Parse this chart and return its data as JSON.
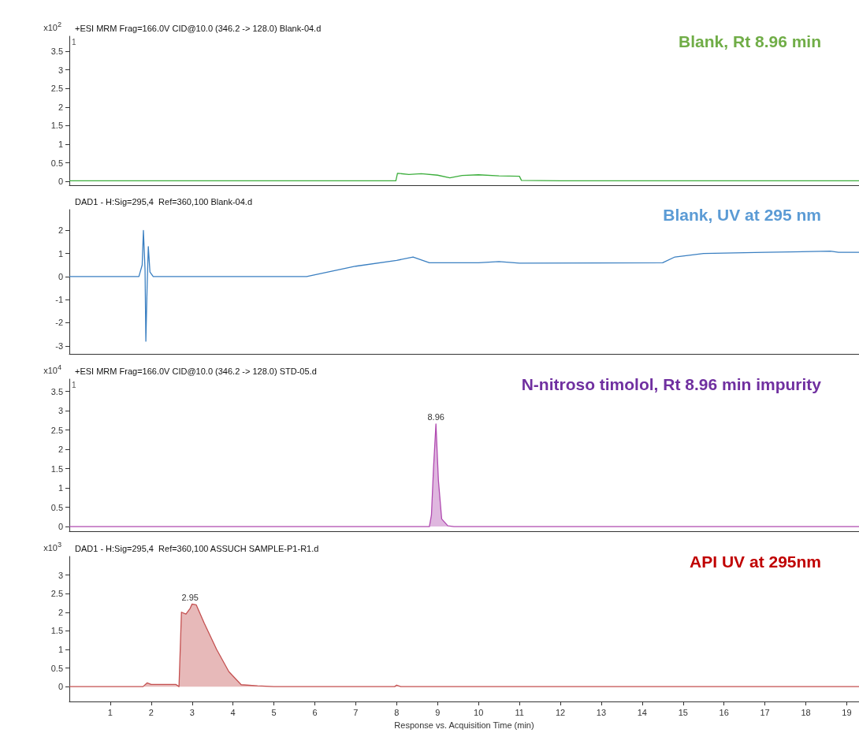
{
  "chart_data": [
    {
      "type": "line",
      "title": "+ESI MRM Frag=166.0V CID@10.0 (346.2 -> 128.0) Blank-04.d",
      "ylabel": "x10$^{2}$",
      "annotations": [
        "Blank, Rt 8.96 min",
        "1"
      ],
      "tick_labels": "y",
      "x": [
        0,
        7.98,
        8.02,
        8.3,
        8.6,
        9.0,
        9.3,
        9.6,
        10.0,
        10.5,
        11.0,
        11.05,
        12.0,
        19.3
      ],
      "series": [
        {
          "color": "#3cae3c",
          "values": [
            0.02,
            0.02,
            0.22,
            0.19,
            0.21,
            0.17,
            0.1,
            0.16,
            0.18,
            0.15,
            0.14,
            0.03,
            0.02,
            0.02
          ]
        }
      ],
      "xlim": [
        0,
        19.3
      ],
      "ylim": [
        -0.1,
        3.9
      ],
      "yticks": [
        0,
        0.5,
        1,
        1.5,
        2,
        2.5,
        3,
        3.5
      ]
    },
    {
      "type": "line",
      "title": "DAD1 - H:Sig=295,4  Ref=360,100 Blank-04.d",
      "annotations": [
        "Blank, UV at 295 nm"
      ],
      "tick_labels": "y",
      "x": [
        0,
        1.7,
        1.78,
        1.81,
        1.85,
        1.87,
        1.9,
        1.93,
        1.97,
        2.05,
        5.8,
        7.0,
        8.0,
        8.4,
        8.8,
        10.0,
        10.5,
        11.0,
        14.5,
        14.8,
        15.5,
        17.0,
        18.6,
        18.8,
        19.3
      ],
      "series": [
        {
          "color": "#3a7fc1",
          "values": [
            0,
            0,
            0.5,
            2.0,
            0.3,
            -2.8,
            -0.5,
            1.3,
            0.2,
            0,
            0,
            0.45,
            0.7,
            0.85,
            0.6,
            0.6,
            0.65,
            0.58,
            0.6,
            0.85,
            1.0,
            1.05,
            1.1,
            1.05,
            1.05
          ]
        }
      ],
      "xlim": [
        0,
        19.3
      ],
      "ylim": [
        -3.35,
        2.9
      ],
      "yticks": [
        -3,
        -2,
        -1,
        0,
        1,
        2
      ]
    },
    {
      "type": "area",
      "title": "+ESI MRM Frag=166.0V CID@10.0 (346.2 -> 128.0) STD-05.d",
      "ylabel": "x10$^{4}$",
      "annotations": [
        "N-nitroso timolol, Rt 8.96 min impurity",
        "1",
        {
          "text": "8.96",
          "x": 8.96,
          "y": 2.66
        }
      ],
      "tick_labels": "y",
      "x": [
        0,
        8.8,
        8.85,
        8.9,
        8.96,
        9.02,
        9.1,
        9.25,
        9.4,
        19.3
      ],
      "series": [
        {
          "color": "#b04ab0",
          "values": [
            0,
            0,
            0.3,
            1.5,
            2.66,
            1.2,
            0.2,
            0.02,
            0,
            0
          ]
        }
      ],
      "xlim": [
        0,
        19.3
      ],
      "ylim": [
        -0.12,
        3.82
      ],
      "yticks": [
        0,
        0.5,
        1,
        1.5,
        2,
        2.5,
        3,
        3.5
      ]
    },
    {
      "type": "area",
      "title": "DAD1 - H:Sig=295,4  Ref=360,100 ASSUCH SAMPLE-P1-R1.d",
      "ylabel": "x10$^{3}$",
      "xlabel": "Response vs. Acquisition Time (min)",
      "annotations": [
        "API UV at 295nm",
        {
          "text": "2.95",
          "x": 2.95,
          "y": 2.22
        }
      ],
      "x": [
        0,
        1.8,
        1.9,
        2.0,
        2.6,
        2.68,
        2.74,
        2.85,
        2.95,
        3.0,
        3.1,
        3.3,
        3.6,
        3.9,
        4.2,
        4.6,
        5.0,
        7.95,
        8.0,
        8.1,
        19.3
      ],
      "series": [
        {
          "color": "#c45050",
          "values": [
            0,
            0,
            0.1,
            0.06,
            0.06,
            0,
            2.0,
            1.95,
            2.1,
            2.22,
            2.2,
            1.7,
            1.0,
            0.4,
            0.05,
            0.02,
            0,
            0,
            0.04,
            0,
            0
          ]
        }
      ],
      "xlim": [
        0,
        19.3
      ],
      "ylim": [
        -0.4,
        3.5
      ],
      "yticks": [
        0,
        0.5,
        1,
        1.5,
        2,
        2.5,
        3
      ],
      "xticks": [
        1,
        2,
        3,
        4,
        5,
        6,
        7,
        8,
        9,
        10,
        11,
        12,
        13,
        14,
        15,
        16,
        17,
        18,
        19
      ]
    }
  ]
}
